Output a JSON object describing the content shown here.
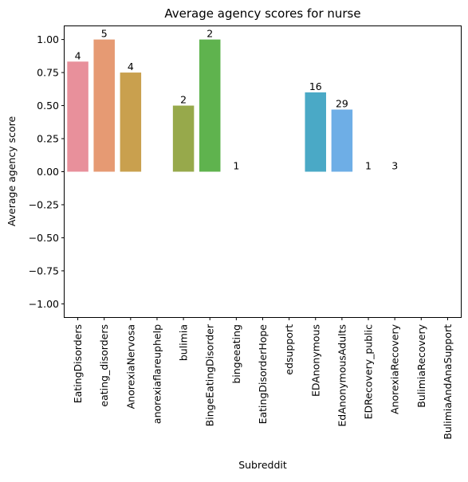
{
  "chart_data": {
    "type": "bar",
    "title": "Average agency scores for nurse",
    "xlabel": "Subreddit",
    "ylabel": "Average agency score",
    "ylim": [
      -1.1,
      1.1
    ],
    "yticks": [
      -1.0,
      -0.75,
      -0.5,
      -0.25,
      0.0,
      0.25,
      0.5,
      0.75,
      1.0
    ],
    "ytick_labels": [
      "−1.00",
      "−0.75",
      "−0.50",
      "−0.25",
      "0.00",
      "0.25",
      "0.50",
      "0.75",
      "1.00"
    ],
    "grid": false,
    "categories": [
      "EatingDisorders",
      "eating_disorders",
      "AnorexiaNervosa",
      "anorexiaflareuphelp",
      "bulimia",
      "BingeEatingDisorder",
      "bingeeating",
      "EatingDisorderHope",
      "edsupport",
      "EDAnonymous",
      "EdAnonymousAdults",
      "EDRecovery_public",
      "AnorexiaRecovery",
      "BulimiaRecovery",
      "BulimiaAndAnaSupport"
    ],
    "values": [
      0.833,
      1.0,
      0.75,
      null,
      0.5,
      1.0,
      0.0,
      null,
      null,
      0.6,
      0.47,
      0.0,
      0.0,
      null,
      null
    ],
    "counts": [
      "4",
      "5",
      "4",
      "",
      "2",
      "2",
      "1",
      "",
      "",
      "16",
      "29",
      "1",
      "3",
      "",
      ""
    ],
    "colors": [
      "#e8909b",
      "#e69a73",
      "#c9a04e",
      "#b3a84a",
      "#97a94b",
      "#5fb34e",
      "#52b088",
      "#55ab9b",
      "#57a9a8",
      "#4aa9c6",
      "#6eaee6",
      "#a7a6ec",
      "#d08fe6",
      "#e58cd3",
      "#ea8fb6"
    ]
  }
}
